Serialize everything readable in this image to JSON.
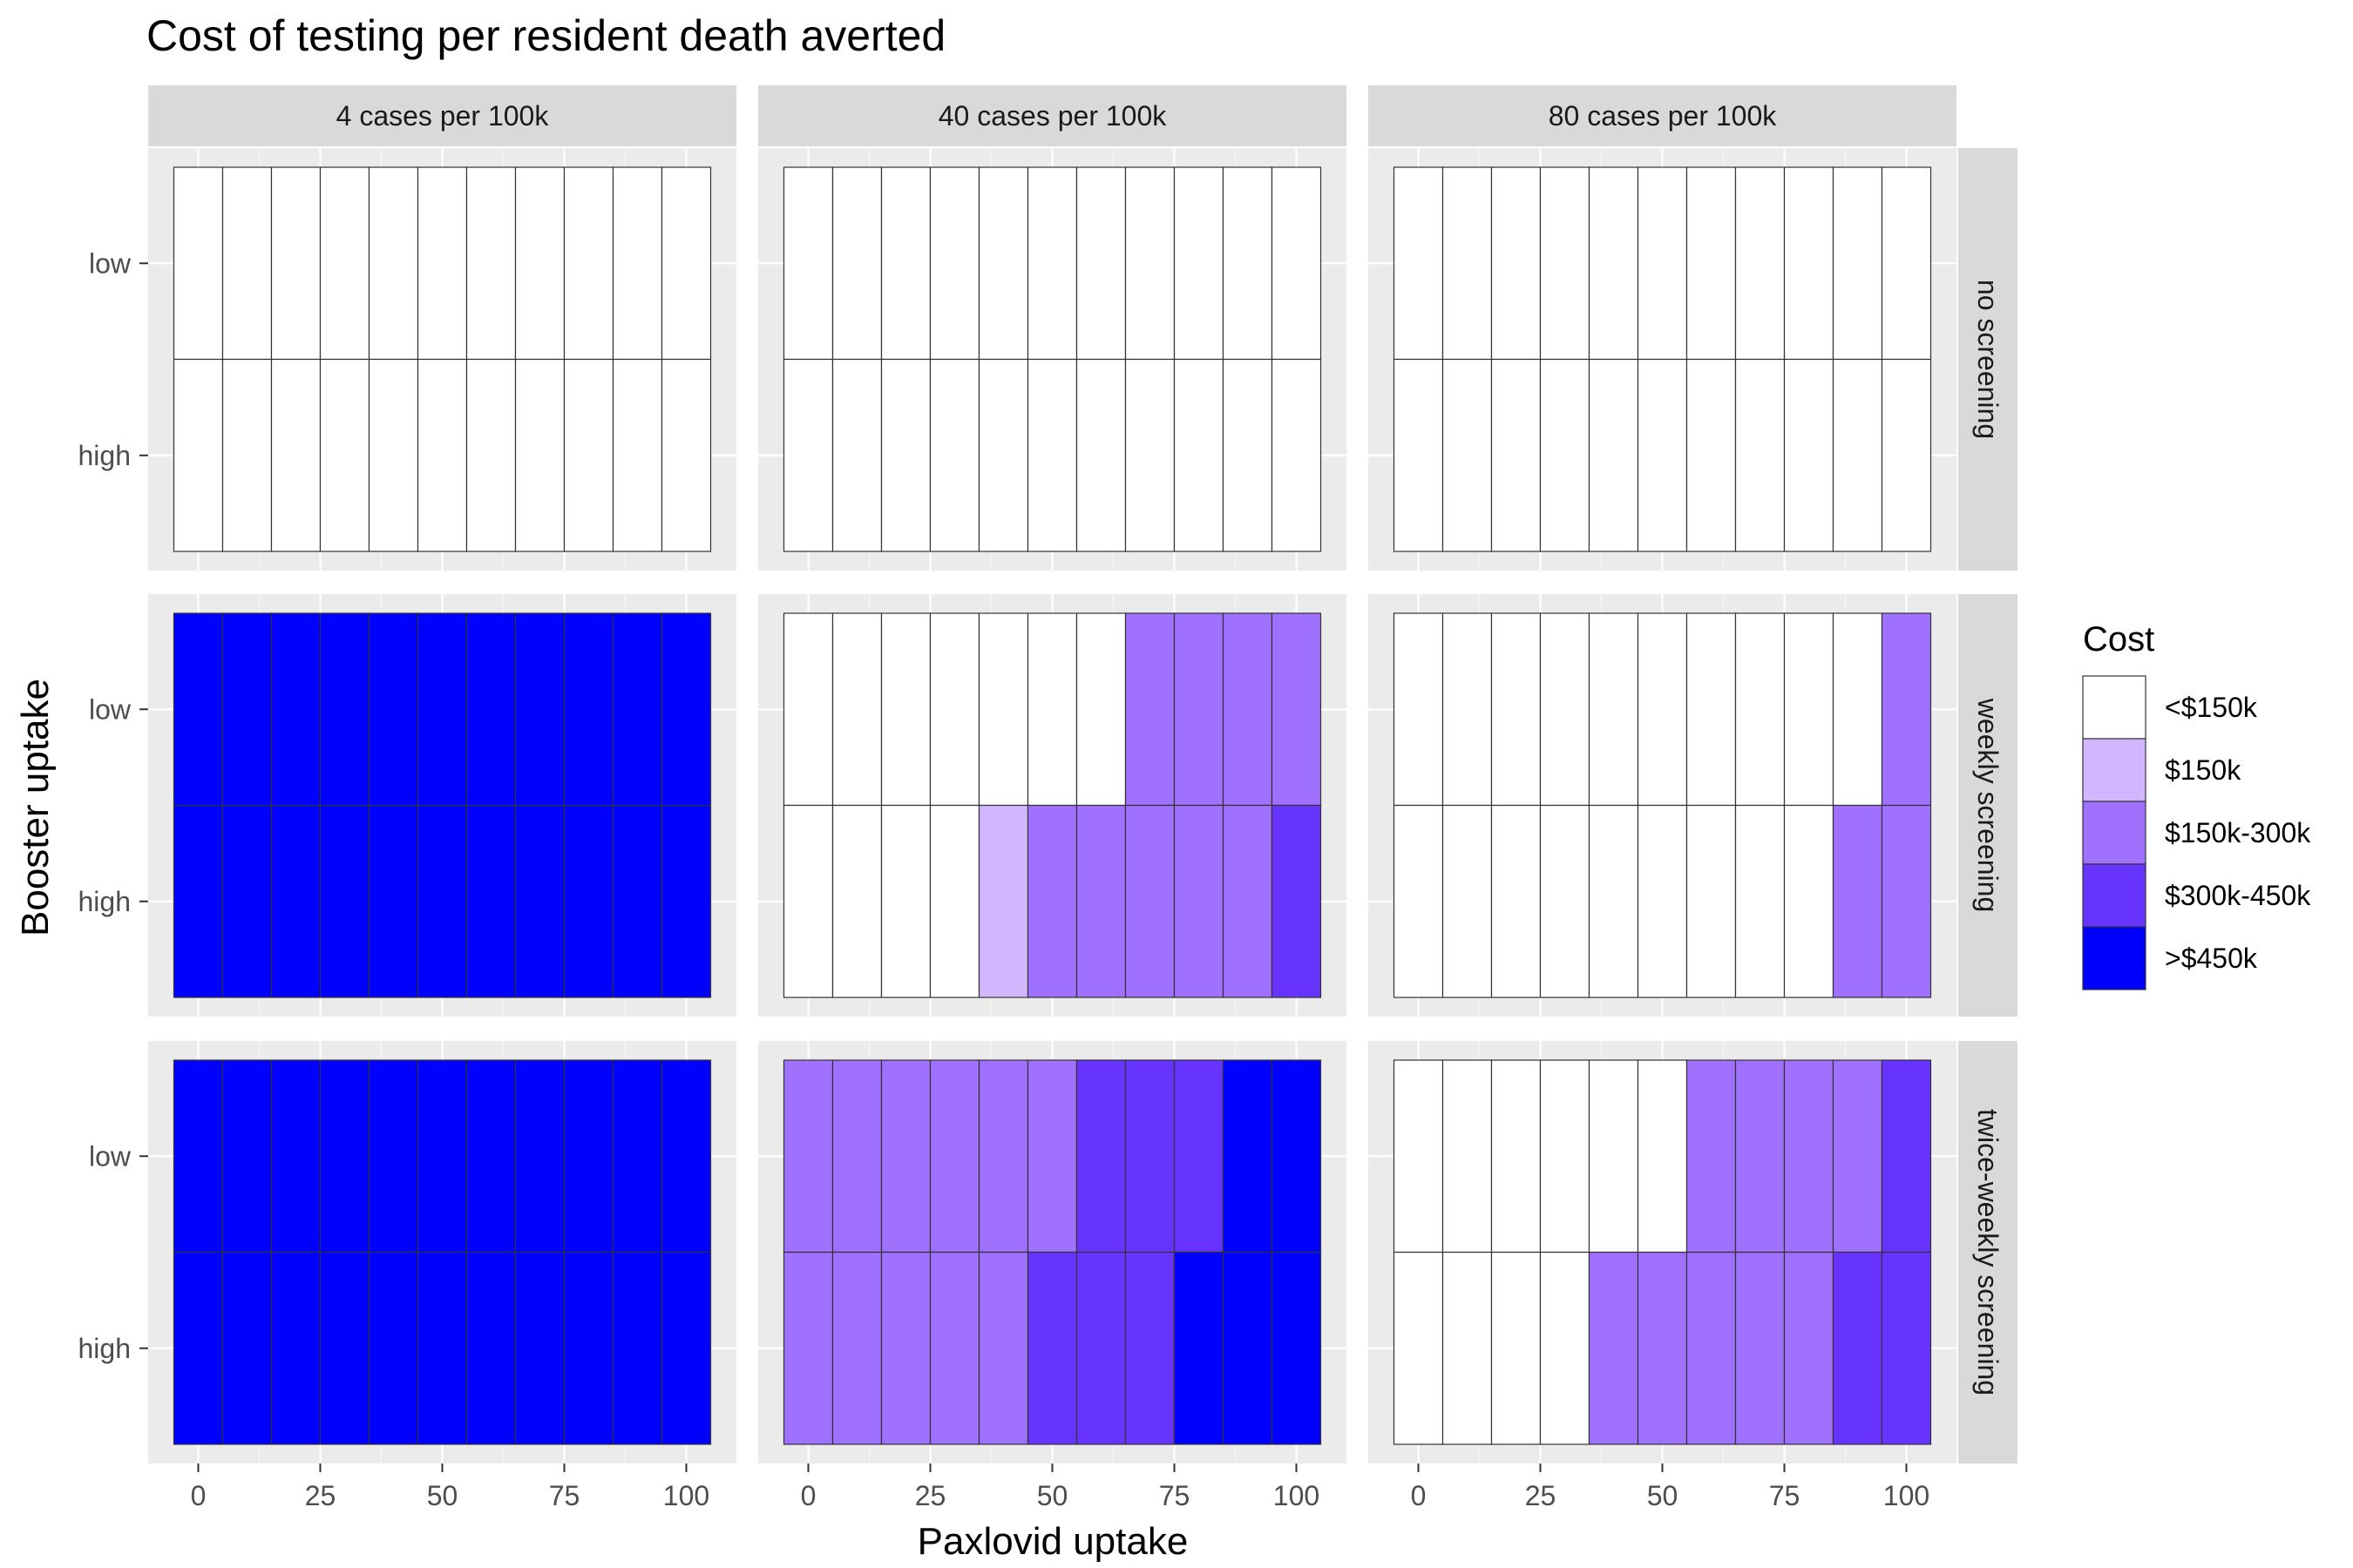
{
  "chart_data": {
    "type": "heatmap",
    "title": "Cost of testing per resident death averted",
    "xlabel": "Paxlovid uptake",
    "ylabel": "Booster uptake",
    "x": [
      0,
      10,
      20,
      30,
      40,
      50,
      60,
      70,
      80,
      90,
      100
    ],
    "x_ticks": [
      "0",
      "25",
      "50",
      "75",
      "100"
    ],
    "x_tick_values": [
      0,
      25,
      50,
      75,
      100
    ],
    "xlim": [
      -5,
      105
    ],
    "y": [
      "low",
      "high"
    ],
    "facet_columns": [
      "4 cases per 100k",
      "40 cases per 100k",
      "80 cases per 100k"
    ],
    "facet_rows": [
      "no screening",
      "weekly screening",
      "twice-weekly screening"
    ],
    "legend": {
      "title": "Cost",
      "position": "right",
      "entries": [
        {
          "label": "<$150k",
          "color": "#FFFFFF"
        },
        {
          "label": "$150k",
          "color": "#D2B6FF"
        },
        {
          "label": "$150k-300k",
          "color": "#A070FF"
        },
        {
          "label": "$300k-450k",
          "color": "#6633FF"
        },
        {
          "label": ">$450k",
          "color": "#0000FF"
        }
      ]
    },
    "panels": [
      {
        "row": "no screening",
        "col": "4 cases per 100k",
        "low": [
          0,
          0,
          0,
          0,
          0,
          0,
          0,
          0,
          0,
          0,
          0
        ],
        "high": [
          0,
          0,
          0,
          0,
          0,
          0,
          0,
          0,
          0,
          0,
          0
        ]
      },
      {
        "row": "no screening",
        "col": "40 cases per 100k",
        "low": [
          0,
          0,
          0,
          0,
          0,
          0,
          0,
          0,
          0,
          0,
          0
        ],
        "high": [
          0,
          0,
          0,
          0,
          0,
          0,
          0,
          0,
          0,
          0,
          0
        ]
      },
      {
        "row": "no screening",
        "col": "80 cases per 100k",
        "low": [
          0,
          0,
          0,
          0,
          0,
          0,
          0,
          0,
          0,
          0,
          0
        ],
        "high": [
          0,
          0,
          0,
          0,
          0,
          0,
          0,
          0,
          0,
          0,
          0
        ]
      },
      {
        "row": "weekly screening",
        "col": "4 cases per 100k",
        "low": [
          4,
          4,
          4,
          4,
          4,
          4,
          4,
          4,
          4,
          4,
          4
        ],
        "high": [
          4,
          4,
          4,
          4,
          4,
          4,
          4,
          4,
          4,
          4,
          4
        ]
      },
      {
        "row": "weekly screening",
        "col": "40 cases per 100k",
        "low": [
          0,
          0,
          0,
          0,
          0,
          0,
          0,
          2,
          2,
          2,
          2
        ],
        "high": [
          0,
          0,
          0,
          0,
          1,
          2,
          2,
          2,
          2,
          2,
          3
        ]
      },
      {
        "row": "weekly screening",
        "col": "80 cases per 100k",
        "low": [
          0,
          0,
          0,
          0,
          0,
          0,
          0,
          0,
          0,
          0,
          2
        ],
        "high": [
          0,
          0,
          0,
          0,
          0,
          0,
          0,
          0,
          0,
          2,
          2
        ]
      },
      {
        "row": "twice-weekly screening",
        "col": "4 cases per 100k",
        "low": [
          4,
          4,
          4,
          4,
          4,
          4,
          4,
          4,
          4,
          4,
          4
        ],
        "high": [
          4,
          4,
          4,
          4,
          4,
          4,
          4,
          4,
          4,
          4,
          4
        ]
      },
      {
        "row": "twice-weekly screening",
        "col": "40 cases per 100k",
        "low": [
          2,
          2,
          2,
          2,
          2,
          2,
          3,
          3,
          3,
          4,
          4
        ],
        "high": [
          2,
          2,
          2,
          2,
          2,
          3,
          3,
          3,
          4,
          4,
          4
        ]
      },
      {
        "row": "twice-weekly screening",
        "col": "80 cases per 100k",
        "low": [
          0,
          0,
          0,
          0,
          0,
          0,
          2,
          2,
          2,
          2,
          3
        ],
        "high": [
          0,
          0,
          0,
          0,
          2,
          2,
          2,
          2,
          2,
          3,
          3
        ]
      }
    ]
  }
}
